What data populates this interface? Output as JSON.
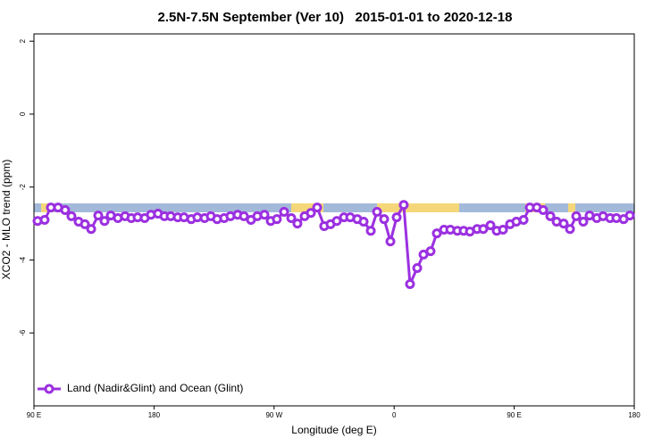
{
  "chart_data": {
    "type": "line",
    "title": "2.5N-7.5N September (Ver 10)   2015-01-01 to 2020-12-18",
    "x_label": "Longitude (deg E)",
    "y_label": "XCO2 - MLO trend (ppm)",
    "xlim": [
      90,
      540
    ],
    "ylim": [
      -8,
      2.2
    ],
    "xticks": [
      {
        "value": 90,
        "label": "90 E"
      },
      {
        "value": 180,
        "label": "180"
      },
      {
        "value": 270,
        "label": "90 W"
      },
      {
        "value": 360,
        "label": "0"
      },
      {
        "value": 450,
        "label": "90 E"
      },
      {
        "value": 540,
        "label": "180"
      }
    ],
    "yticks": [
      2,
      0,
      -2,
      -4,
      -6
    ],
    "legend": "bottom-left",
    "series": [
      {
        "name": "Land (Nadir&Glint) and Ocean (Glint)",
        "color": "#9b30e0",
        "x": [
          92.7,
          98.0,
          102.7,
          108.1,
          113.4,
          118.1,
          123.5,
          128.2,
          132.9,
          138.2,
          142.9,
          147.6,
          152.9,
          158.3,
          163.0,
          167.7,
          173.0,
          177.7,
          183.0,
          187.8,
          192.5,
          197.8,
          202.5,
          207.9,
          212.5,
          217.9,
          222.6,
          227.3,
          232.6,
          237.3,
          242.7,
          247.4,
          252.7,
          257.4,
          262.8,
          267.5,
          272.1,
          277.5,
          282.9,
          287.5,
          292.9,
          297.6,
          302.3,
          307.6,
          312.3,
          317.0,
          322.4,
          327.1,
          332.4,
          337.1,
          342.5,
          347.2,
          352.5,
          357.2,
          361.9,
          367.2,
          371.9,
          377.3,
          382.0,
          387.3,
          392.0,
          397.4,
          402.1,
          407.4,
          412.1,
          416.8,
          422.2,
          426.8,
          432.2,
          436.9,
          441.6,
          446.9,
          451.6,
          457.0,
          461.7,
          467.0,
          471.7,
          477.1,
          481.8,
          487.1,
          491.8,
          496.5,
          501.8,
          506.5,
          511.9,
          516.6,
          521.9,
          526.6,
          532.0,
          536.7
        ],
        "values": [
          -2.93,
          -2.9,
          -2.56,
          -2.56,
          -2.63,
          -2.8,
          -2.95,
          -3.02,
          -3.15,
          -2.78,
          -2.93,
          -2.78,
          -2.85,
          -2.8,
          -2.85,
          -2.83,
          -2.85,
          -2.76,
          -2.73,
          -2.8,
          -2.8,
          -2.83,
          -2.83,
          -2.88,
          -2.83,
          -2.85,
          -2.8,
          -2.88,
          -2.85,
          -2.8,
          -2.76,
          -2.8,
          -2.9,
          -2.8,
          -2.76,
          -2.93,
          -2.88,
          -2.68,
          -2.85,
          -3.0,
          -2.8,
          -2.71,
          -2.56,
          -3.07,
          -3.02,
          -2.93,
          -2.83,
          -2.83,
          -2.88,
          -2.95,
          -3.2,
          -2.68,
          -2.88,
          -3.49,
          -2.83,
          -2.49,
          -4.66,
          -4.22,
          -3.85,
          -3.76,
          -3.27,
          -3.17,
          -3.17,
          -3.2,
          -3.2,
          -3.22,
          -3.15,
          -3.15,
          -3.05,
          -3.2,
          -3.17,
          -3.02,
          -2.95,
          -2.9,
          -2.56,
          -2.56,
          -2.63,
          -2.8,
          -2.95,
          -3.0,
          -3.15,
          -2.8,
          -2.95,
          -2.78,
          -2.85,
          -2.8,
          -2.85,
          -2.85,
          -2.88,
          -2.78
        ]
      }
    ]
  }
}
